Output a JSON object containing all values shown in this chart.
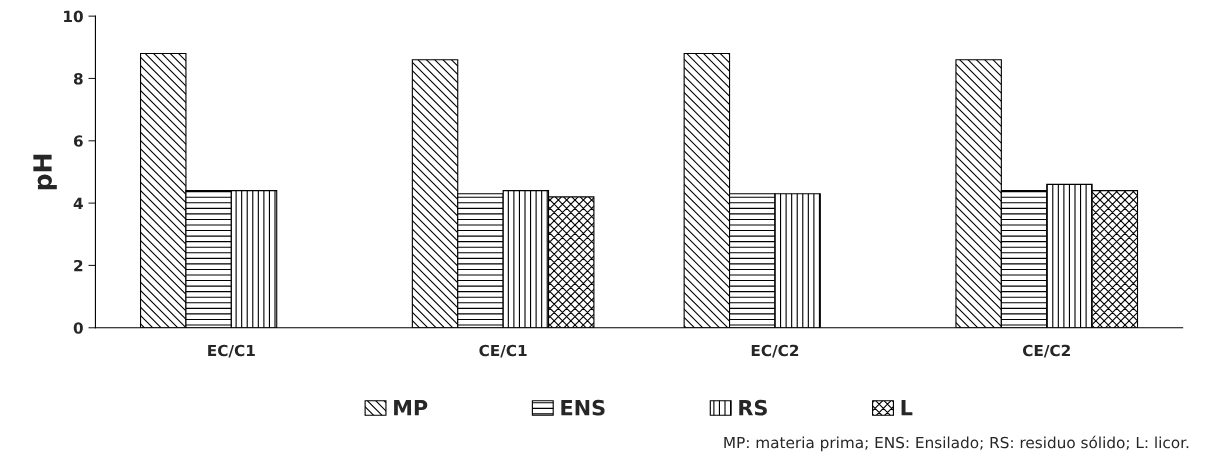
{
  "chart_data": {
    "type": "bar",
    "ylabel": "pH",
    "categories": [
      "EC/C1",
      "CE/C1",
      "EC/C2",
      "CE/C2"
    ],
    "series": [
      {
        "name": "MP",
        "color": "#000000",
        "values": [
          8.8,
          8.6,
          8.8,
          8.6
        ]
      },
      {
        "name": "ENS",
        "color": "#000000",
        "values": [
          4.4,
          4.3,
          4.3,
          4.4
        ]
      },
      {
        "name": "RS",
        "color": "#000000",
        "values": [
          4.4,
          4.4,
          4.3,
          4.6
        ]
      },
      {
        "name": "L",
        "color": "#000000",
        "values": [
          null,
          4.2,
          null,
          4.4
        ]
      }
    ],
    "ylim": [
      0,
      10
    ],
    "yticks": [
      0,
      2,
      4,
      6,
      8,
      10
    ],
    "grid": false,
    "legend": "bottom",
    "annotations": [
      "MP: materia prima; ENS: Ensilado; RS: residuo sólido; L: licor."
    ]
  }
}
